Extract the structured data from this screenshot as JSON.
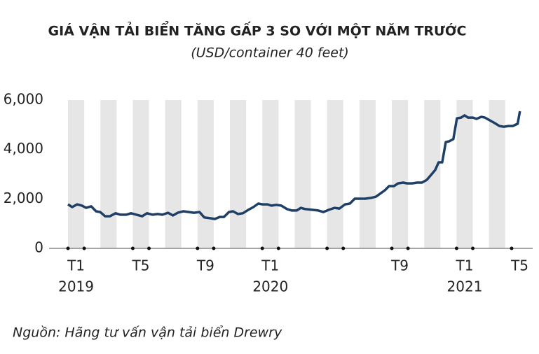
{
  "chart_data": {
    "type": "line",
    "title": "GIÁ VẬN TẢI BIỂN TĂNG GẤP 3 SO VỚI MỘT NĂM TRƯỚC",
    "subtitle": "(USD/container 40 feet)",
    "source": "Nguồn: Hãng tư vấn vận tải biển Drewry",
    "color": "#1e3f66",
    "x": [
      0,
      0.26,
      0.56,
      0.86,
      1.12,
      1.43,
      1.73,
      1.99,
      2.29,
      2.59,
      2.94,
      3.24,
      3.59,
      3.89,
      4.23,
      4.58,
      4.88,
      5.23,
      5.53,
      5.83,
      6.18,
      6.48,
      6.78,
      7.13,
      7.47,
      7.78,
      8.12,
      8.42,
      8.77,
      9.07,
      9.37,
      9.63,
      9.94,
      10.19,
      10.5,
      10.8,
      11.14,
      11.45,
      11.75,
      12.01,
      12.31,
      12.57,
      12.87,
      13.17,
      13.52,
      13.82,
      14.13,
      14.38,
      14.64,
      15.08,
      15.46,
      15.77,
      16.11,
      16.46,
      16.76,
      17.11,
      17.41,
      17.71,
      18.06,
      18.36,
      18.7,
      19.01,
      19.27,
      19.57,
      19.83,
      20.13,
      20.39,
      20.69,
      20.95,
      21.25,
      21.56,
      21.86,
      22.16,
      22.42,
      22.68,
      22.89,
      23.11,
      23.33,
      23.54,
      23.8,
      24.02,
      24.28,
      24.49,
      24.71,
      25.01,
      25.23,
      25.53,
      25.75,
      26.05,
      26.35,
      26.65,
      26.91,
      27.21,
      27.47,
      27.77,
      27.91
    ],
    "values": [
      1780,
      1670,
      1780,
      1730,
      1640,
      1700,
      1500,
      1470,
      1300,
      1300,
      1420,
      1360,
      1360,
      1420,
      1360,
      1300,
      1420,
      1360,
      1390,
      1360,
      1440,
      1330,
      1440,
      1500,
      1470,
      1440,
      1470,
      1250,
      1220,
      1190,
      1270,
      1270,
      1470,
      1500,
      1390,
      1420,
      1560,
      1670,
      1810,
      1780,
      1780,
      1730,
      1760,
      1730,
      1590,
      1530,
      1530,
      1640,
      1590,
      1560,
      1530,
      1470,
      1560,
      1640,
      1610,
      1780,
      1810,
      2010,
      2010,
      2010,
      2040,
      2090,
      2210,
      2350,
      2520,
      2520,
      2630,
      2660,
      2630,
      2630,
      2660,
      2660,
      2770,
      2970,
      3170,
      3480,
      3480,
      4300,
      4330,
      4420,
      5260,
      5290,
      5380,
      5290,
      5290,
      5240,
      5320,
      5290,
      5180,
      5070,
      4950,
      4920,
      4950,
      4950,
      5040,
      5550
    ],
    "xlim": [
      -1.17,
      28.7
    ],
    "xticks": [
      {
        "value": 0.5,
        "label": "T1"
      },
      {
        "value": 4.5,
        "label": "T5"
      },
      {
        "value": 8.5,
        "label": "T9"
      },
      {
        "value": 12.5,
        "label": "T1"
      },
      {
        "value": 16.5,
        "label": null
      },
      {
        "value": 20.5,
        "label": "T9"
      },
      {
        "value": 24.5,
        "label": "T1"
      },
      {
        "value": 27.9,
        "label": "T5"
      }
    ],
    "xyears": [
      {
        "value": 0.5,
        "label": "2019"
      },
      {
        "value": 12.5,
        "label": "2020"
      },
      {
        "value": 24.5,
        "label": "2021"
      }
    ],
    "ylim": [
      0,
      6000
    ],
    "yticks": [
      0,
      {
        "value": 2000,
        "label": "2,000"
      },
      {
        "value": 4000,
        "label": "4,000"
      },
      {
        "value": 6000,
        "label": "6,000"
      }
    ],
    "grid": false
  }
}
